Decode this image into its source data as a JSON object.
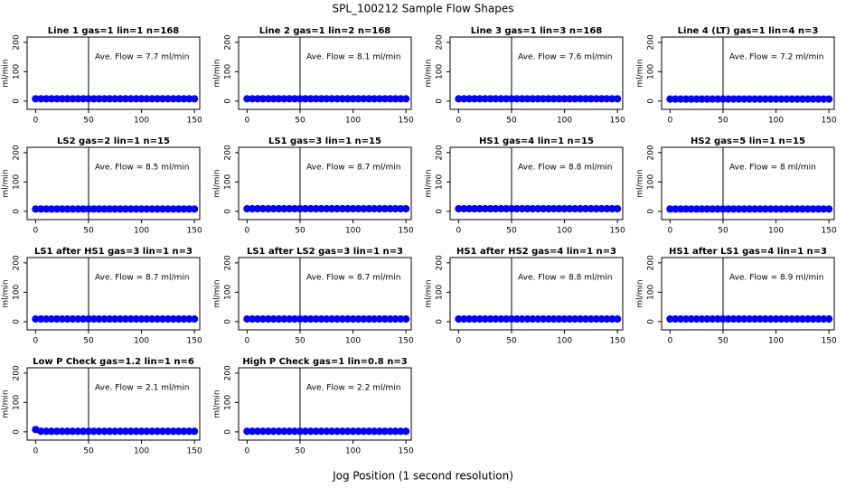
{
  "title": "SPL_100212  Sample Flow Shapes",
  "xlabel": "Jog Position (1 second resolution)",
  "chart_data": [
    {
      "type": "scatter",
      "title": "Line 1 gas=1 lin=1 n=168",
      "ylabel": "ml/min",
      "annotation": "Ave. Flow =  7.7  ml/min",
      "vline": 50,
      "color": "#0000ff",
      "xlim": [
        -8,
        155
      ],
      "ylim": [
        -28,
        218
      ],
      "xticks": [
        0,
        50,
        100,
        150
      ],
      "yticks": [
        0,
        100,
        200
      ],
      "x": [
        0,
        5,
        10,
        15,
        20,
        25,
        30,
        35,
        40,
        45,
        50,
        55,
        60,
        65,
        70,
        75,
        80,
        85,
        90,
        95,
        100,
        105,
        110,
        115,
        120,
        125,
        130,
        135,
        140,
        145,
        150
      ],
      "values": [
        8,
        8,
        8,
        8,
        8,
        8,
        8,
        8,
        8,
        8,
        8,
        8,
        8,
        8,
        8,
        8,
        8,
        8,
        8,
        8,
        8,
        8,
        8,
        8,
        8,
        8,
        8,
        8,
        8,
        8,
        8
      ]
    },
    {
      "type": "scatter",
      "title": "Line 2 gas=1 lin=2 n=168",
      "ylabel": "ml/min",
      "annotation": "Ave. Flow =  8.1  ml/min",
      "vline": 50,
      "color": "#0000ff",
      "xlim": [
        -8,
        155
      ],
      "ylim": [
        -28,
        218
      ],
      "xticks": [
        0,
        50,
        100,
        150
      ],
      "yticks": [
        0,
        100,
        200
      ],
      "x": [
        0,
        5,
        10,
        15,
        20,
        25,
        30,
        35,
        40,
        45,
        50,
        55,
        60,
        65,
        70,
        75,
        80,
        85,
        90,
        95,
        100,
        105,
        110,
        115,
        120,
        125,
        130,
        135,
        140,
        145,
        150
      ],
      "values": [
        8,
        8,
        8,
        8,
        8,
        8,
        8,
        8,
        8,
        8,
        8,
        8,
        8,
        8,
        8,
        8,
        8,
        8,
        8,
        8,
        8,
        8,
        8,
        8,
        8,
        8,
        8,
        8,
        8,
        8,
        8
      ]
    },
    {
      "type": "scatter",
      "title": "Line 3 gas=1 lin=3 n=168",
      "ylabel": "ml/min",
      "annotation": "Ave. Flow =  7.6  ml/min",
      "vline": 50,
      "color": "#0000ff",
      "xlim": [
        -8,
        155
      ],
      "ylim": [
        -28,
        218
      ],
      "xticks": [
        0,
        50,
        100,
        150
      ],
      "yticks": [
        0,
        100,
        200
      ],
      "x": [
        0,
        5,
        10,
        15,
        20,
        25,
        30,
        35,
        40,
        45,
        50,
        55,
        60,
        65,
        70,
        75,
        80,
        85,
        90,
        95,
        100,
        105,
        110,
        115,
        120,
        125,
        130,
        135,
        140,
        145,
        150
      ],
      "values": [
        8,
        8,
        8,
        8,
        8,
        8,
        8,
        8,
        8,
        8,
        8,
        8,
        8,
        8,
        8,
        8,
        8,
        8,
        8,
        8,
        8,
        8,
        8,
        8,
        8,
        8,
        8,
        8,
        8,
        8,
        8
      ]
    },
    {
      "type": "scatter",
      "title": "Line 4 (LT) gas=1 lin=4 n=3",
      "ylabel": "ml/min",
      "annotation": "Ave. Flow =  7.2  ml/min",
      "vline": 50,
      "color": "#0000ff",
      "xlim": [
        -8,
        155
      ],
      "ylim": [
        -28,
        218
      ],
      "xticks": [
        0,
        50,
        100,
        150
      ],
      "yticks": [
        0,
        100,
        200
      ],
      "x": [
        0,
        5,
        10,
        15,
        20,
        25,
        30,
        35,
        40,
        45,
        50,
        55,
        60,
        65,
        70,
        75,
        80,
        85,
        90,
        95,
        100,
        105,
        110,
        115,
        120,
        125,
        130,
        135,
        140,
        145,
        150
      ],
      "values": [
        7,
        7,
        7,
        7,
        7,
        7,
        7,
        7,
        7,
        7,
        7,
        7,
        7,
        7,
        7,
        7,
        7,
        7,
        7,
        7,
        7,
        7,
        7,
        7,
        7,
        7,
        7,
        7,
        7,
        7,
        7
      ]
    },
    {
      "type": "scatter",
      "title": "LS2 gas=2 lin=1 n=15",
      "ylabel": "ml/min",
      "annotation": "Ave. Flow =  8.5  ml/min",
      "vline": 50,
      "color": "#0000ff",
      "xlim": [
        -8,
        155
      ],
      "ylim": [
        -28,
        218
      ],
      "xticks": [
        0,
        50,
        100,
        150
      ],
      "yticks": [
        0,
        100,
        200
      ],
      "x": [
        0,
        5,
        10,
        15,
        20,
        25,
        30,
        35,
        40,
        45,
        50,
        55,
        60,
        65,
        70,
        75,
        80,
        85,
        90,
        95,
        100,
        105,
        110,
        115,
        120,
        125,
        130,
        135,
        140,
        145,
        150
      ],
      "values": [
        8,
        8,
        8,
        8,
        8,
        8,
        8,
        8,
        8,
        8,
        8,
        8,
        8,
        8,
        8,
        8,
        8,
        8,
        8,
        8,
        8,
        8,
        8,
        8,
        8,
        8,
        8,
        8,
        8,
        8,
        8
      ]
    },
    {
      "type": "scatter",
      "title": "LS1 gas=3 lin=1 n=15",
      "ylabel": "ml/min",
      "annotation": "Ave. Flow =  8.7  ml/min",
      "vline": 50,
      "color": "#0000ff",
      "xlim": [
        -8,
        155
      ],
      "ylim": [
        -28,
        218
      ],
      "xticks": [
        0,
        50,
        100,
        150
      ],
      "yticks": [
        0,
        100,
        200
      ],
      "x": [
        0,
        5,
        10,
        15,
        20,
        25,
        30,
        35,
        40,
        45,
        50,
        55,
        60,
        65,
        70,
        75,
        80,
        85,
        90,
        95,
        100,
        105,
        110,
        115,
        120,
        125,
        130,
        135,
        140,
        145,
        150
      ],
      "values": [
        9,
        9,
        9,
        9,
        9,
        9,
        9,
        9,
        9,
        9,
        9,
        9,
        9,
        9,
        9,
        9,
        9,
        9,
        9,
        9,
        9,
        9,
        9,
        9,
        9,
        9,
        9,
        9,
        9,
        9,
        9
      ]
    },
    {
      "type": "scatter",
      "title": "HS1 gas=4 lin=1 n=15",
      "ylabel": "ml/min",
      "annotation": "Ave. Flow =  8.8  ml/min",
      "vline": 50,
      "color": "#0000ff",
      "xlim": [
        -8,
        155
      ],
      "ylim": [
        -28,
        218
      ],
      "xticks": [
        0,
        50,
        100,
        150
      ],
      "yticks": [
        0,
        100,
        200
      ],
      "x": [
        0,
        5,
        10,
        15,
        20,
        25,
        30,
        35,
        40,
        45,
        50,
        55,
        60,
        65,
        70,
        75,
        80,
        85,
        90,
        95,
        100,
        105,
        110,
        115,
        120,
        125,
        130,
        135,
        140,
        145,
        150
      ],
      "values": [
        9,
        9,
        9,
        9,
        9,
        9,
        9,
        9,
        9,
        9,
        9,
        9,
        9,
        9,
        9,
        9,
        9,
        9,
        9,
        9,
        9,
        9,
        9,
        9,
        9,
        9,
        9,
        9,
        9,
        9,
        9
      ]
    },
    {
      "type": "scatter",
      "title": "HS2 gas=5 lin=1 n=15",
      "ylabel": "ml/min",
      "annotation": "Ave. Flow =  8  ml/min",
      "vline": 50,
      "color": "#0000ff",
      "xlim": [
        -8,
        155
      ],
      "ylim": [
        -28,
        218
      ],
      "xticks": [
        0,
        50,
        100,
        150
      ],
      "yticks": [
        0,
        100,
        200
      ],
      "x": [
        0,
        5,
        10,
        15,
        20,
        25,
        30,
        35,
        40,
        45,
        50,
        55,
        60,
        65,
        70,
        75,
        80,
        85,
        90,
        95,
        100,
        105,
        110,
        115,
        120,
        125,
        130,
        135,
        140,
        145,
        150
      ],
      "values": [
        8,
        8,
        8,
        8,
        8,
        8,
        8,
        8,
        8,
        8,
        8,
        8,
        8,
        8,
        8,
        8,
        8,
        8,
        8,
        8,
        8,
        8,
        8,
        8,
        8,
        8,
        8,
        8,
        8,
        8,
        8
      ]
    },
    {
      "type": "scatter",
      "title": "LS1 after HS1 gas=3 lin=1 n=3",
      "ylabel": "ml/min",
      "annotation": "Ave. Flow =  8.7  ml/min",
      "vline": 50,
      "color": "#0000ff",
      "xlim": [
        -8,
        155
      ],
      "ylim": [
        -28,
        218
      ],
      "xticks": [
        0,
        50,
        100,
        150
      ],
      "yticks": [
        0,
        100,
        200
      ],
      "x": [
        0,
        5,
        10,
        15,
        20,
        25,
        30,
        35,
        40,
        45,
        50,
        55,
        60,
        65,
        70,
        75,
        80,
        85,
        90,
        95,
        100,
        105,
        110,
        115,
        120,
        125,
        130,
        135,
        140,
        145,
        150
      ],
      "values": [
        9,
        9,
        9,
        9,
        9,
        9,
        9,
        9,
        9,
        9,
        9,
        9,
        9,
        9,
        9,
        9,
        9,
        9,
        9,
        9,
        9,
        9,
        9,
        9,
        9,
        9,
        9,
        9,
        9,
        9,
        9
      ]
    },
    {
      "type": "scatter",
      "title": "LS1 after LS2 gas=3 lin=1 n=3",
      "ylabel": "ml/min",
      "annotation": "Ave. Flow =  8.7  ml/min",
      "vline": 50,
      "color": "#0000ff",
      "xlim": [
        -8,
        155
      ],
      "ylim": [
        -28,
        218
      ],
      "xticks": [
        0,
        50,
        100,
        150
      ],
      "yticks": [
        0,
        100,
        200
      ],
      "x": [
        0,
        5,
        10,
        15,
        20,
        25,
        30,
        35,
        40,
        45,
        50,
        55,
        60,
        65,
        70,
        75,
        80,
        85,
        90,
        95,
        100,
        105,
        110,
        115,
        120,
        125,
        130,
        135,
        140,
        145,
        150
      ],
      "values": [
        9,
        9,
        9,
        9,
        9,
        9,
        9,
        9,
        9,
        9,
        9,
        9,
        9,
        9,
        9,
        9,
        9,
        9,
        9,
        9,
        9,
        9,
        9,
        9,
        9,
        9,
        9,
        9,
        9,
        9,
        9
      ]
    },
    {
      "type": "scatter",
      "title": "HS1 after HS2 gas=4 lin=1 n=3",
      "ylabel": "ml/min",
      "annotation": "Ave. Flow =  8.8  ml/min",
      "vline": 50,
      "color": "#0000ff",
      "xlim": [
        -8,
        155
      ],
      "ylim": [
        -28,
        218
      ],
      "xticks": [
        0,
        50,
        100,
        150
      ],
      "yticks": [
        0,
        100,
        200
      ],
      "x": [
        0,
        5,
        10,
        15,
        20,
        25,
        30,
        35,
        40,
        45,
        50,
        55,
        60,
        65,
        70,
        75,
        80,
        85,
        90,
        95,
        100,
        105,
        110,
        115,
        120,
        125,
        130,
        135,
        140,
        145,
        150
      ],
      "values": [
        9,
        9,
        9,
        9,
        9,
        9,
        9,
        9,
        9,
        9,
        9,
        9,
        9,
        9,
        9,
        9,
        9,
        9,
        9,
        9,
        9,
        9,
        9,
        9,
        9,
        9,
        9,
        9,
        9,
        9,
        9
      ]
    },
    {
      "type": "scatter",
      "title": "HS1 after LS1 gas=4 lin=1 n=3",
      "ylabel": "ml/min",
      "annotation": "Ave. Flow =  8.9  ml/min",
      "vline": 50,
      "color": "#0000ff",
      "xlim": [
        -8,
        155
      ],
      "ylim": [
        -28,
        218
      ],
      "xticks": [
        0,
        50,
        100,
        150
      ],
      "yticks": [
        0,
        100,
        200
      ],
      "x": [
        0,
        5,
        10,
        15,
        20,
        25,
        30,
        35,
        40,
        45,
        50,
        55,
        60,
        65,
        70,
        75,
        80,
        85,
        90,
        95,
        100,
        105,
        110,
        115,
        120,
        125,
        130,
        135,
        140,
        145,
        150
      ],
      "values": [
        9,
        9,
        9,
        9,
        9,
        9,
        9,
        9,
        9,
        9,
        9,
        9,
        9,
        9,
        9,
        9,
        9,
        9,
        9,
        9,
        9,
        9,
        9,
        9,
        9,
        9,
        9,
        9,
        9,
        9,
        9
      ]
    },
    {
      "type": "scatter",
      "title": "Low P Check gas=1.2 lin=1 n=6",
      "ylabel": "ml/min",
      "annotation": "Ave. Flow =  2.1  ml/min",
      "vline": 50,
      "color": "#0000ff",
      "xlim": [
        -8,
        155
      ],
      "ylim": [
        -28,
        218
      ],
      "xticks": [
        0,
        50,
        100,
        150
      ],
      "yticks": [
        0,
        100,
        200
      ],
      "x": [
        0,
        5,
        10,
        15,
        20,
        25,
        30,
        35,
        40,
        45,
        50,
        55,
        60,
        65,
        70,
        75,
        80,
        85,
        90,
        95,
        100,
        105,
        110,
        115,
        120,
        125,
        130,
        135,
        140,
        145,
        150
      ],
      "values": [
        8,
        2,
        2,
        2,
        2,
        2,
        2,
        2,
        2,
        2,
        2,
        2,
        2,
        2,
        2,
        2,
        2,
        2,
        2,
        2,
        2,
        2,
        2,
        2,
        2,
        2,
        2,
        2,
        2,
        2,
        2
      ]
    },
    {
      "type": "scatter",
      "title": "High P Check gas=1 lin=0.8 n=3",
      "ylabel": "ml/min",
      "annotation": "Ave. Flow =  2.2  ml/min",
      "vline": 50,
      "color": "#0000ff",
      "xlim": [
        -8,
        155
      ],
      "ylim": [
        -28,
        218
      ],
      "xticks": [
        0,
        50,
        100,
        150
      ],
      "yticks": [
        0,
        100,
        200
      ],
      "x": [
        0,
        5,
        10,
        15,
        20,
        25,
        30,
        35,
        40,
        45,
        50,
        55,
        60,
        65,
        70,
        75,
        80,
        85,
        90,
        95,
        100,
        105,
        110,
        115,
        120,
        125,
        130,
        135,
        140,
        145,
        150
      ],
      "values": [
        2,
        2,
        2,
        2,
        2,
        2,
        2,
        2,
        2,
        2,
        2,
        2,
        2,
        2,
        2,
        2,
        2,
        2,
        2,
        2,
        2,
        2,
        2,
        2,
        2,
        2,
        2,
        2,
        2,
        2,
        2
      ]
    }
  ]
}
